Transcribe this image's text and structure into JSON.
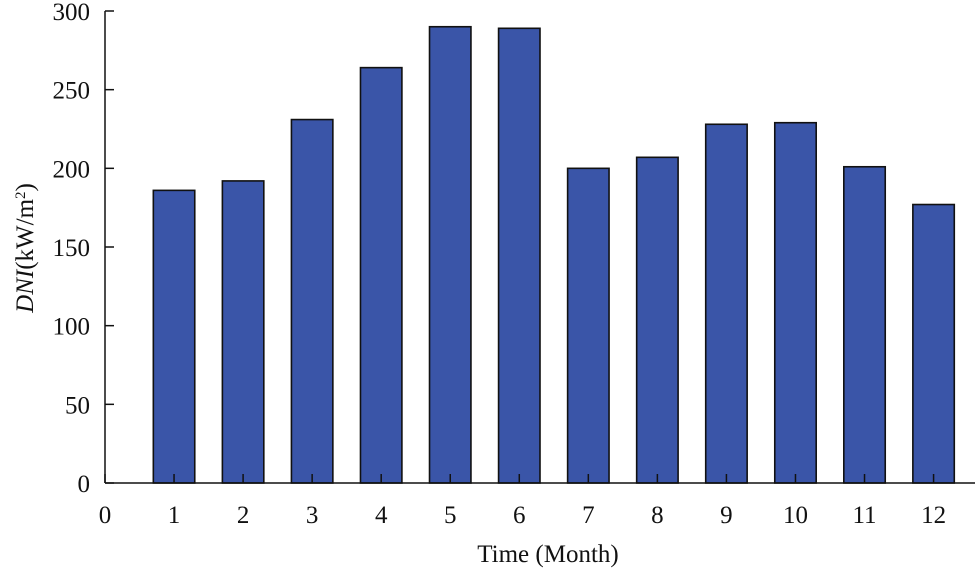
{
  "chart_data": {
    "type": "bar",
    "xlabel": "Time (Month)",
    "ylabel": {
      "italic": "DNI",
      "rest": "(kW/m",
      "sup": "2",
      "close": ")"
    },
    "categories": [
      "1",
      "2",
      "3",
      "4",
      "5",
      "6",
      "7",
      "8",
      "9",
      "10",
      "11",
      "12"
    ],
    "values": [
      186,
      192,
      231,
      264,
      290,
      289,
      200,
      207,
      228,
      229,
      201,
      177
    ],
    "xlim": [
      0,
      12.6
    ],
    "ylim": [
      0,
      300
    ],
    "x_ticks": [
      "0",
      "1",
      "2",
      "3",
      "4",
      "5",
      "6",
      "7",
      "8",
      "9",
      "10",
      "11",
      "12"
    ],
    "y_ticks": [
      "0",
      "50",
      "100",
      "150",
      "200",
      "250",
      "300"
    ],
    "grid": false,
    "bar_color": "#3a55a8"
  }
}
